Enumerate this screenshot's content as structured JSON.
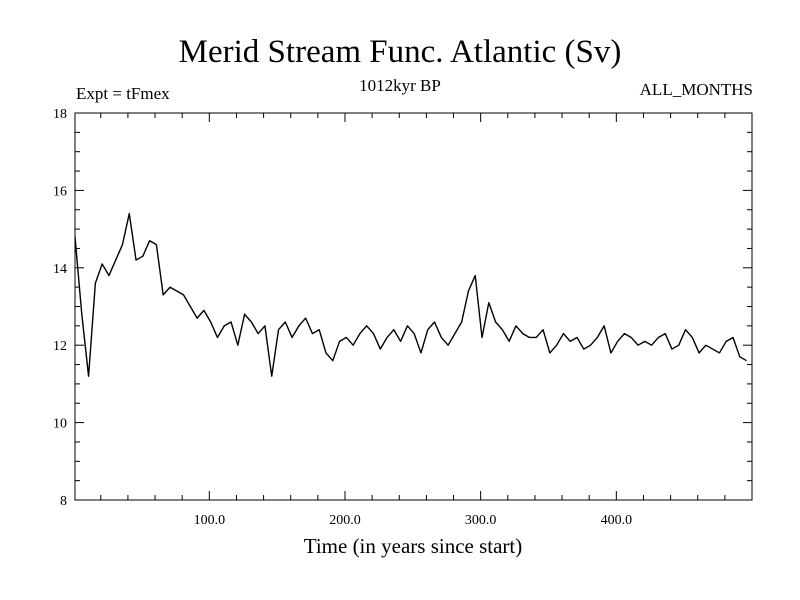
{
  "chart_data": {
    "type": "line",
    "title": "Merid Stream Func. Atlantic (Sv)",
    "subtitle": "1012kyr BP",
    "experiment_label": "Expt = tFmex",
    "months_label": "ALL_MONTHS",
    "xlabel": "Time (in years since start)",
    "ylabel": "",
    "xlim": [
      1,
      500
    ],
    "ylim": [
      8,
      18
    ],
    "xticks": [
      100,
      200,
      300,
      400
    ],
    "xtick_labels": [
      "100.0",
      "200.0",
      "300.0",
      "400.0"
    ],
    "yticks": [
      8,
      10,
      12,
      14,
      16,
      18
    ],
    "ytick_labels": [
      "8",
      "10",
      "12",
      "14",
      "16",
      "18"
    ],
    "series": [
      {
        "name": "Merid Stream Func. Atlantic",
        "color": "#000000",
        "x_start": 1,
        "x_step": 5,
        "values": [
          14.8,
          12.8,
          11.2,
          13.6,
          14.1,
          13.8,
          14.2,
          14.6,
          15.4,
          14.2,
          14.3,
          14.7,
          14.6,
          13.3,
          13.5,
          13.4,
          13.3,
          13.0,
          12.7,
          12.9,
          12.6,
          12.2,
          12.5,
          12.6,
          12.0,
          12.8,
          12.6,
          12.3,
          12.5,
          11.2,
          12.4,
          12.6,
          12.2,
          12.5,
          12.7,
          12.3,
          12.4,
          11.8,
          11.6,
          12.1,
          12.2,
          12.0,
          12.3,
          12.5,
          12.3,
          11.9,
          12.2,
          12.4,
          12.1,
          12.5,
          12.3,
          11.8,
          12.4,
          12.6,
          12.2,
          12.0,
          12.3,
          12.6,
          13.4,
          13.8,
          12.2,
          13.1,
          12.6,
          12.4,
          12.1,
          12.5,
          12.3,
          12.2,
          12.2,
          12.4,
          11.8,
          12.0,
          12.3,
          12.1,
          12.2,
          11.9,
          12.0,
          12.2,
          12.5,
          11.8,
          12.1,
          12.3,
          12.2,
          12.0,
          12.1,
          12.0,
          12.2,
          12.3,
          11.9,
          12.0,
          12.4,
          12.2,
          11.8,
          12.0,
          11.9,
          11.8,
          12.1,
          12.2,
          11.7,
          11.6
        ]
      }
    ]
  }
}
